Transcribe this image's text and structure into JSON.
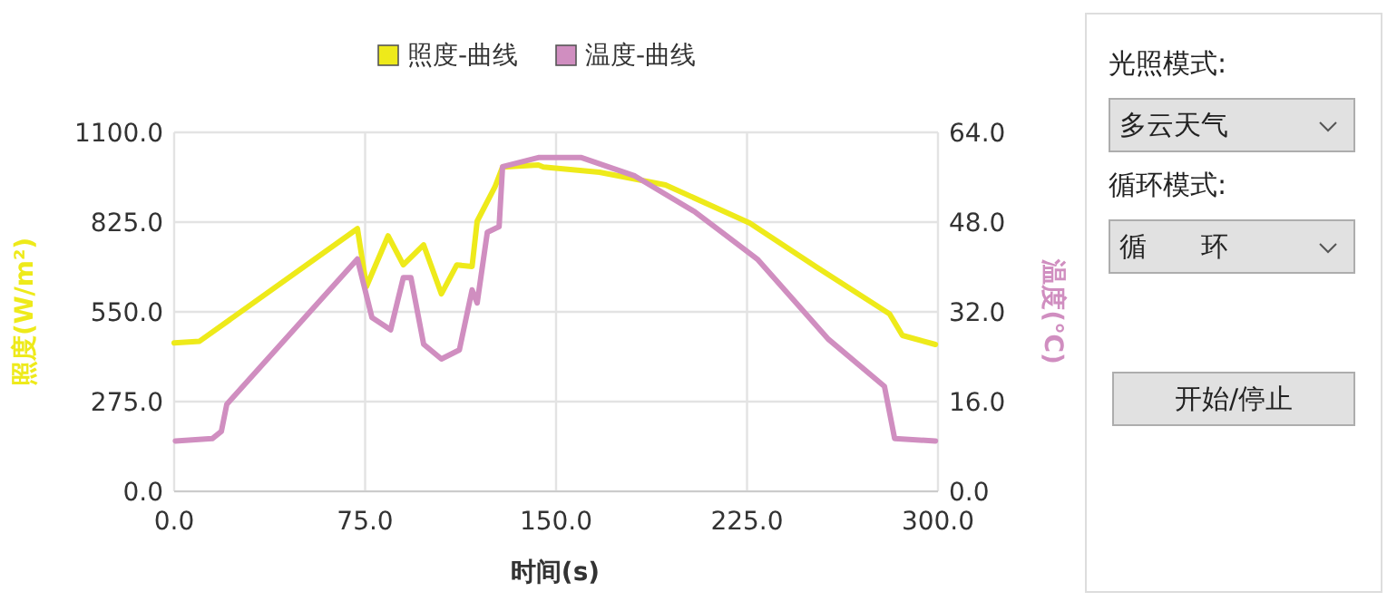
{
  "chart_data": [
    {
      "type": "line",
      "xlabel": "时间(s)",
      "ylabel": "照度(W/m²)",
      "y2label": "温度(℃)",
      "legend": "top",
      "grid": true,
      "xlim": [
        0,
        300
      ],
      "xticks": [
        {
          "value": 0,
          "label": "0.0"
        },
        {
          "value": 75,
          "label": "75.0"
        },
        {
          "value": 150,
          "label": "150.0"
        },
        {
          "value": 225,
          "label": "225.0"
        },
        {
          "value": 300,
          "label": "300.0"
        }
      ],
      "ylim": [
        0,
        1100
      ],
      "yticks": [
        {
          "value": 0,
          "label": "0.0"
        },
        {
          "value": 275,
          "label": "275.0"
        },
        {
          "value": 550,
          "label": "550.0"
        },
        {
          "value": 825,
          "label": "825.0"
        },
        {
          "value": 1100,
          "label": "1100.0"
        }
      ],
      "y2lim": [
        0,
        64
      ],
      "y2ticks": [
        {
          "value": 0,
          "label": "0.0"
        },
        {
          "value": 16,
          "label": "16.0"
        },
        {
          "value": 32,
          "label": "32.0"
        },
        {
          "value": 48,
          "label": "48.0"
        },
        {
          "value": 64,
          "label": "64.0"
        }
      ],
      "series": [
        {
          "name": "照度-曲线",
          "color": "#eeea1a",
          "x": [
            0,
            10,
            72,
            75.5,
            84,
            90,
            98,
            105,
            111,
            117,
            119,
            126,
            129,
            143,
            145,
            167,
            193,
            226,
            252,
            281,
            286,
            299
          ],
          "values": [
            455,
            460,
            805,
            628,
            783,
            694,
            755,
            605,
            694,
            689,
            828,
            933,
            994,
            1000,
            994,
            978,
            939,
            822,
            689,
            544,
            478,
            450
          ]
        },
        {
          "name": "温度-曲线",
          "color": "#d08ec0",
          "axis": "y2",
          "x": [
            0.5,
            15,
            18.5,
            20.7,
            72,
            77.7,
            85,
            90,
            93,
            98,
            105,
            112,
            117,
            119,
            123,
            127.6,
            129,
            143,
            160,
            181,
            204.6,
            229,
            257,
            279,
            283,
            299
          ],
          "values": [
            9.0,
            9.4,
            10.7,
            15.5,
            41.4,
            31.0,
            28.8,
            38.1,
            38.1,
            26.2,
            23.6,
            25.2,
            35.9,
            33.6,
            46.2,
            47.2,
            57.9,
            59.5,
            59.5,
            56.2,
            49.8,
            41.4,
            27.1,
            18.7,
            9.4,
            9.0
          ]
        }
      ]
    },
    {
      "type": "other",
      "annotations": [
        "光照模式:",
        "多云天气",
        "循环模式:",
        "循　　环",
        "开始/停止"
      ]
    }
  ]
}
